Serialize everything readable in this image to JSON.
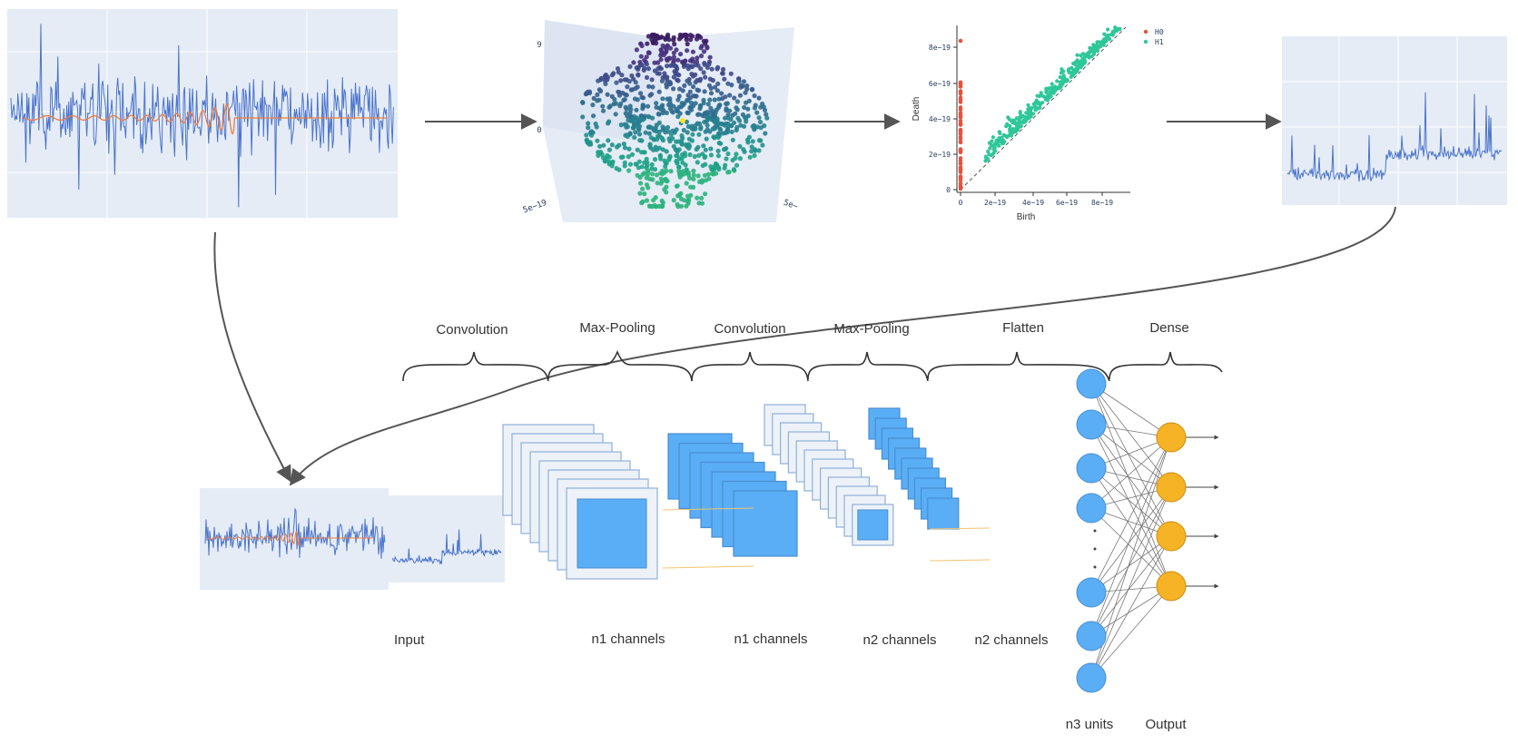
{
  "colors": {
    "signal_blue": "#4b74cc",
    "chirp_orange": "#ef7d3c",
    "plot_bg": "#e5ecf6",
    "h0_red": "#e8513c",
    "h1_green": "#2ec79a",
    "layer_blue": "#5aaef5",
    "layer_pale": "#edf2f9",
    "node_blue": "#5aaef5",
    "node_yellow": "#f6b325",
    "arrow_gray": "#555555"
  },
  "persistence_plot": {
    "xlabel": "Birth",
    "ylabel": "Death",
    "x_ticks": [
      "0",
      "2e−19",
      "4e−19",
      "6e−19",
      "8e−19"
    ],
    "y_ticks": [
      "0",
      "2e−19",
      "4e−19",
      "6e−19",
      "8e−19"
    ],
    "legend": [
      "H0",
      "H1"
    ]
  },
  "scatter3d": {
    "tick_top": "9",
    "tick_mid": "0",
    "tick_left": "5e−19",
    "tick_right": "5e−"
  },
  "cnn": {
    "section_labels": [
      "Convolution",
      "Max-Pooling",
      "Convolution",
      "Max-Pooling",
      "Flatten",
      "Dense"
    ],
    "bottom_labels": [
      "Input",
      "n1 channels",
      "n1 channels",
      "n2 channels",
      "n2 channels",
      "n3 units",
      "Output"
    ]
  }
}
